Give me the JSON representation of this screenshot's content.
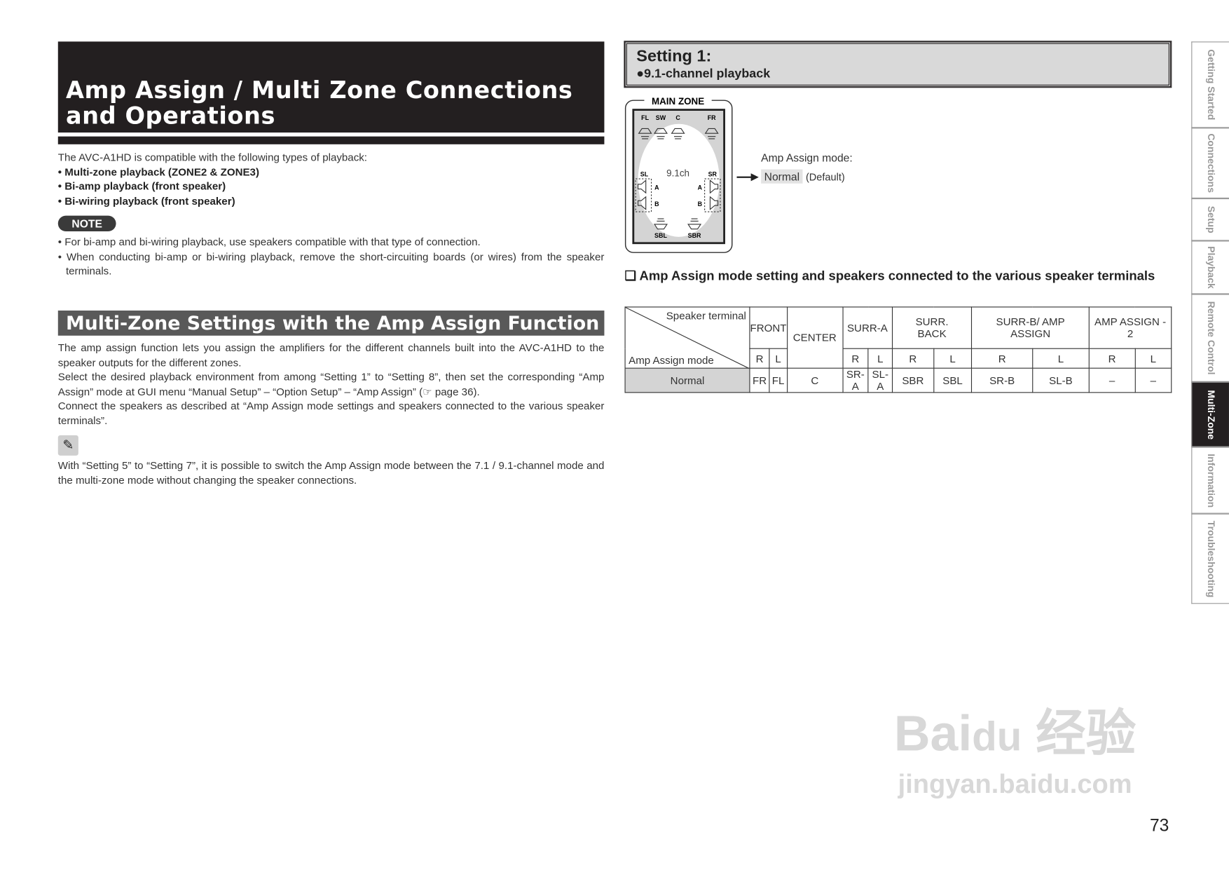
{
  "left": {
    "title": "Amp Assign / Multi Zone Connections and Operations",
    "intro": "The AVC-A1HD is compatible with the following types of playback:",
    "bullets": [
      "• Multi-zone playback (ZONE2 & ZONE3)",
      "• Bi-amp playback (front speaker)",
      "• Bi-wiring playback (front speaker)"
    ],
    "note_label": "NOTE",
    "notes": [
      "For bi-amp and bi-wiring playback, use speakers compatible with that type of connection.",
      "When conducting bi-amp or bi-wiring playback, remove the short-circuiting boards (or wires) from the speaker terminals."
    ],
    "section_title": "Multi-Zone Settings with the Amp Assign Function",
    "paragraphs": [
      "The amp assign function lets you assign the amplifiers for the different channels built into the AVC-A1HD to the speaker outputs for the different zones.",
      "Select the desired playback environment from among “Setting 1” to “Setting 8”, then set the corresponding “Amp Assign” mode at GUI menu “Manual Setup” – “Option Setup” – “Amp Assign” (☞ page 36).",
      "Connect the speakers as described at “Amp Assign mode settings and speakers connected to the various speaker terminals”."
    ],
    "memo_text": "With “Setting 5” to “Setting 7”, it is possible to switch the Amp Assign mode between the 7.1 / 9.1-channel mode and the multi-zone mode without changing the speaker connections."
  },
  "right": {
    "setting_title": "Setting 1:",
    "setting_sub": "●9.1-channel playback",
    "diagram": {
      "zone_label": "MAIN ZONE",
      "channels": "9.1ch",
      "speakers": {
        "fl": "FL",
        "sw": "SW",
        "c": "C",
        "fr": "FR",
        "sl": "SL",
        "sr": "SR",
        "sbl": "SBL",
        "sbr": "SBR",
        "a": "A",
        "b": "B"
      }
    },
    "mode_label": "Amp Assign mode:",
    "mode_value": "Normal",
    "mode_default": "(Default)",
    "table_heading": "❑ Amp Assign mode setting and speakers connected to the various speaker terminals",
    "table": {
      "corner_top": "Speaker terminal",
      "corner_bottom": "Amp Assign mode",
      "groups": [
        "FRONT",
        "CENTER",
        "SURR-A",
        "SURR. BACK",
        "SURR-B/ AMP ASSIGN",
        "AMP ASSIGN - 2"
      ],
      "sub": [
        "R",
        "L",
        "R",
        "L",
        "R",
        "L",
        "R",
        "L",
        "R",
        "L"
      ],
      "row_label": "Normal",
      "row": [
        "FR",
        "FL",
        "C",
        "SR-A",
        "SL-A",
        "SBR",
        "SBL",
        "SR-B",
        "SL-B",
        "–",
        "–"
      ]
    }
  },
  "tabs": [
    "Getting Started",
    "Connections",
    "Setup",
    "Playback",
    "Remote Control",
    "Multi-Zone",
    "Information",
    "Troubleshooting"
  ],
  "active_tab": "Multi-Zone",
  "watermark": "Baidu 经验 jingyan.baidu.com",
  "page_number": "73"
}
